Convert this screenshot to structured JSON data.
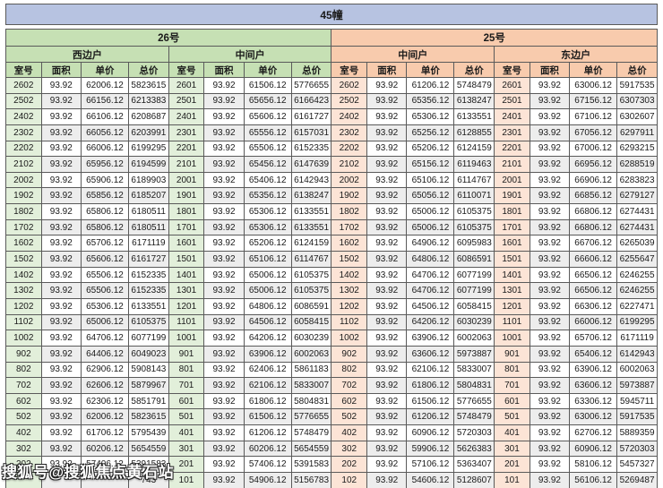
{
  "title": "45幢",
  "watermark": "搜狐号@搜狐焦点黄石站",
  "colors": {
    "title_bg": "#b7c3e1",
    "green_header": "#c6e0b4",
    "green_tint": "#e2efda",
    "orange_header": "#f8cbad",
    "orange_tint": "#fce4d6",
    "stripe": "#ededed",
    "border": "#5a5a5a"
  },
  "table": {
    "columns": [
      "室号",
      "面积",
      "单价",
      "总价"
    ],
    "buildings": [
      {
        "label": "26号",
        "theme": "green",
        "group_span": 2
      },
      {
        "label": "25号",
        "theme": "orange",
        "group_span": 2
      }
    ],
    "groups": [
      {
        "building": "26号",
        "unit_type": "西边户",
        "theme": "green",
        "rows": [
          [
            "2602",
            "93.92",
            "62006.12",
            "5823615"
          ],
          [
            "2502",
            "93.92",
            "66156.12",
            "6213383"
          ],
          [
            "2402",
            "93.92",
            "66106.12",
            "6208687"
          ],
          [
            "2302",
            "93.92",
            "66056.12",
            "6203991"
          ],
          [
            "2202",
            "93.92",
            "66006.12",
            "6199295"
          ],
          [
            "2102",
            "93.92",
            "65956.12",
            "6194599"
          ],
          [
            "2002",
            "93.92",
            "65906.12",
            "6189903"
          ],
          [
            "1902",
            "93.92",
            "65856.12",
            "6185207"
          ],
          [
            "1802",
            "93.92",
            "65806.12",
            "6180511"
          ],
          [
            "1702",
            "93.92",
            "65806.12",
            "6180511"
          ],
          [
            "1602",
            "93.92",
            "65706.12",
            "6171119"
          ],
          [
            "1502",
            "93.92",
            "65606.12",
            "6161727"
          ],
          [
            "1402",
            "93.92",
            "65506.12",
            "6152335"
          ],
          [
            "1302",
            "93.92",
            "65506.12",
            "6152335"
          ],
          [
            "1202",
            "93.92",
            "65306.12",
            "6133551"
          ],
          [
            "1102",
            "93.92",
            "65006.12",
            "6105375"
          ],
          [
            "1002",
            "93.92",
            "64706.12",
            "6077199"
          ],
          [
            "902",
            "93.92",
            "64406.12",
            "6049023"
          ],
          [
            "802",
            "93.92",
            "62906.12",
            "5908143"
          ],
          [
            "702",
            "93.92",
            "62606.12",
            "5879967"
          ],
          [
            "602",
            "93.92",
            "62306.12",
            "5851791"
          ],
          [
            "502",
            "93.92",
            "62006.12",
            "5823615"
          ],
          [
            "402",
            "93.92",
            "61706.12",
            "5795439"
          ],
          [
            "302",
            "93.92",
            "60206.12",
            "5654559"
          ],
          [
            "202",
            "93.92",
            "57406.12",
            "5391583"
          ],
          [
            "",
            "",
            "",
            "743"
          ]
        ]
      },
      {
        "building": "26号",
        "unit_type": "中间户",
        "theme": "green",
        "rows": [
          [
            "2601",
            "93.92",
            "61506.12",
            "5776655"
          ],
          [
            "2501",
            "93.92",
            "65656.12",
            "6166423"
          ],
          [
            "2401",
            "93.92",
            "65606.12",
            "6161727"
          ],
          [
            "2301",
            "93.92",
            "65556.12",
            "6157031"
          ],
          [
            "2201",
            "93.92",
            "65506.12",
            "6152335"
          ],
          [
            "2101",
            "93.92",
            "65456.12",
            "6147639"
          ],
          [
            "2001",
            "93.92",
            "65406.12",
            "6142943"
          ],
          [
            "1901",
            "93.92",
            "65356.12",
            "6138247"
          ],
          [
            "1801",
            "93.92",
            "65306.12",
            "6133551"
          ],
          [
            "1701",
            "93.92",
            "65306.12",
            "6133551"
          ],
          [
            "1601",
            "93.92",
            "65206.12",
            "6124159"
          ],
          [
            "1501",
            "93.92",
            "65106.12",
            "6114767"
          ],
          [
            "1401",
            "93.92",
            "65006.12",
            "6105375"
          ],
          [
            "1301",
            "93.92",
            "65006.12",
            "6105375"
          ],
          [
            "1201",
            "93.92",
            "64806.12",
            "6086591"
          ],
          [
            "1101",
            "93.92",
            "64506.12",
            "6058415"
          ],
          [
            "1001",
            "93.92",
            "64206.12",
            "6030239"
          ],
          [
            "901",
            "93.92",
            "63906.12",
            "6002063"
          ],
          [
            "801",
            "93.92",
            "62406.12",
            "5861183"
          ],
          [
            "701",
            "93.92",
            "62106.12",
            "5833007"
          ],
          [
            "601",
            "93.92",
            "61806.12",
            "5804831"
          ],
          [
            "501",
            "93.92",
            "61506.12",
            "5776655"
          ],
          [
            "401",
            "93.92",
            "61206.12",
            "5748479"
          ],
          [
            "301",
            "93.92",
            "60206.12",
            "5654559"
          ],
          [
            "201",
            "93.92",
            "57406.12",
            "5391583"
          ],
          [
            "101",
            "93.92",
            "54906.12",
            "5156783"
          ]
        ]
      },
      {
        "building": "25号",
        "unit_type": "中间户",
        "theme": "orange",
        "rows": [
          [
            "2602",
            "93.92",
            "61206.12",
            "5748479"
          ],
          [
            "2502",
            "93.92",
            "65356.12",
            "6138247"
          ],
          [
            "2402",
            "93.92",
            "65306.12",
            "6133551"
          ],
          [
            "2302",
            "93.92",
            "65256.12",
            "6128855"
          ],
          [
            "2202",
            "93.92",
            "65206.12",
            "6124159"
          ],
          [
            "2102",
            "93.92",
            "65156.12",
            "6119463"
          ],
          [
            "2002",
            "93.92",
            "65106.12",
            "6114767"
          ],
          [
            "1902",
            "93.92",
            "65056.12",
            "6110071"
          ],
          [
            "1802",
            "93.92",
            "65006.12",
            "6105375"
          ],
          [
            "1702",
            "93.92",
            "65006.12",
            "6105375"
          ],
          [
            "1602",
            "93.92",
            "64906.12",
            "6095983"
          ],
          [
            "1502",
            "93.92",
            "64806.12",
            "6086591"
          ],
          [
            "1402",
            "93.92",
            "64706.12",
            "6077199"
          ],
          [
            "1302",
            "93.92",
            "64706.12",
            "6077199"
          ],
          [
            "1202",
            "93.92",
            "64506.12",
            "6058415"
          ],
          [
            "1102",
            "93.92",
            "64206.12",
            "6030239"
          ],
          [
            "1002",
            "93.92",
            "63906.12",
            "6002063"
          ],
          [
            "902",
            "93.92",
            "63606.12",
            "5973887"
          ],
          [
            "802",
            "93.92",
            "62106.12",
            "5833007"
          ],
          [
            "702",
            "93.92",
            "61806.12",
            "5804831"
          ],
          [
            "602",
            "93.92",
            "61506.12",
            "5776655"
          ],
          [
            "502",
            "93.92",
            "61206.12",
            "5748479"
          ],
          [
            "402",
            "93.92",
            "60906.12",
            "5720303"
          ],
          [
            "302",
            "93.92",
            "59906.12",
            "5626383"
          ],
          [
            "202",
            "93.92",
            "57106.12",
            "5363407"
          ],
          [
            "102",
            "93.92",
            "54606.12",
            "5128607"
          ]
        ]
      },
      {
        "building": "25号",
        "unit_type": "东边户",
        "theme": "orange",
        "rows": [
          [
            "2601",
            "93.92",
            "63006.12",
            "5917535"
          ],
          [
            "2501",
            "93.92",
            "67156.12",
            "6307303"
          ],
          [
            "2401",
            "93.92",
            "67106.12",
            "6302607"
          ],
          [
            "2301",
            "93.92",
            "67056.12",
            "6297911"
          ],
          [
            "2201",
            "93.92",
            "67006.12",
            "6293215"
          ],
          [
            "2101",
            "93.92",
            "66956.12",
            "6288519"
          ],
          [
            "2001",
            "93.92",
            "66906.12",
            "6283823"
          ],
          [
            "1901",
            "93.92",
            "66856.12",
            "6279127"
          ],
          [
            "1801",
            "93.92",
            "66806.12",
            "6274431"
          ],
          [
            "1701",
            "93.92",
            "66806.12",
            "6274431"
          ],
          [
            "1601",
            "93.92",
            "66706.12",
            "6265039"
          ],
          [
            "1501",
            "93.92",
            "66606.12",
            "6255647"
          ],
          [
            "1401",
            "93.92",
            "66506.12",
            "6246255"
          ],
          [
            "1301",
            "93.92",
            "66506.12",
            "6246255"
          ],
          [
            "1201",
            "93.92",
            "66306.12",
            "6227471"
          ],
          [
            "1101",
            "93.92",
            "66006.12",
            "6199295"
          ],
          [
            "1001",
            "93.92",
            "65706.12",
            "6171119"
          ],
          [
            "901",
            "93.92",
            "65406.12",
            "6142943"
          ],
          [
            "801",
            "93.92",
            "63906.12",
            "6002063"
          ],
          [
            "701",
            "93.92",
            "63606.12",
            "5973887"
          ],
          [
            "601",
            "93.92",
            "63306.12",
            "5945711"
          ],
          [
            "501",
            "93.92",
            "63006.12",
            "5917535"
          ],
          [
            "401",
            "93.92",
            "62706.12",
            "5889359"
          ],
          [
            "301",
            "93.92",
            "60906.12",
            "5720303"
          ],
          [
            "201",
            "93.92",
            "58106.12",
            "5457327"
          ],
          [
            "101",
            "93.92",
            "56106.12",
            "5269487"
          ]
        ]
      }
    ]
  }
}
